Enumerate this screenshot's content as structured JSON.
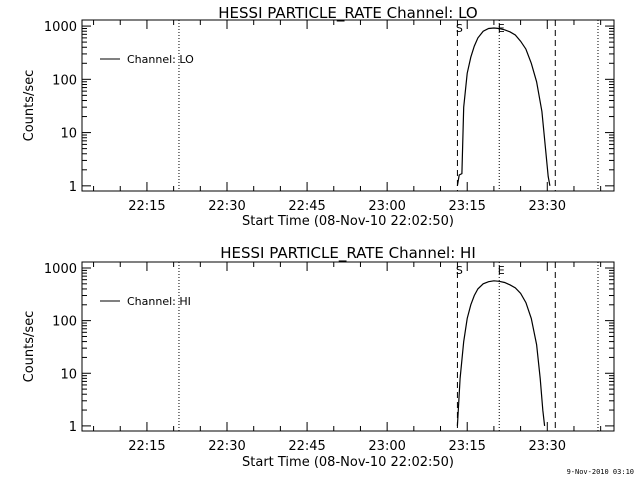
{
  "footer": {
    "stamp": "9-Nov-2010 03:10"
  },
  "chart_data": [
    {
      "type": "line",
      "title": "HESSI PARTICLE_RATE Channel: LO",
      "xlabel": "Start Time (08-Nov-10 22:02:50)",
      "ylabel": "Counts/sec",
      "xlim": [
        "22:02:50",
        "23:42:30"
      ],
      "yscale": "log",
      "ylim": [
        0.8,
        1300
      ],
      "x_ticks": [
        "22:15",
        "22:30",
        "22:45",
        "23:00",
        "23:15",
        "23:30"
      ],
      "y_ticks": [
        "1",
        "10",
        "100",
        "1000"
      ],
      "legend": {
        "position": "top-left",
        "entries": [
          "Channel: LO"
        ]
      },
      "series": [
        {
          "name": "Channel: LO",
          "x": [
            "23:13:10",
            "23:13:30",
            "23:14:00",
            "23:14:20",
            "23:15:00",
            "23:15:40",
            "23:16:20",
            "23:17:00",
            "23:18:00",
            "23:19:00",
            "23:20:00",
            "23:21:00",
            "23:22:00",
            "23:23:00",
            "23:24:00",
            "23:25:00",
            "23:26:00",
            "23:27:00",
            "23:28:00",
            "23:29:00",
            "23:29:40",
            "23:30:10",
            "23:30:30"
          ],
          "y": [
            1.0,
            1.6,
            1.7,
            30,
            130,
            260,
            420,
            600,
            800,
            900,
            920,
            900,
            850,
            780,
            680,
            520,
            370,
            200,
            90,
            25,
            5,
            1.5,
            1.0
          ]
        }
      ],
      "markers": [
        {
          "time": "22:21:00",
          "style": "dotted"
        },
        {
          "time": "23:13:10",
          "style": "dashed",
          "label": "S"
        },
        {
          "time": "23:21:00",
          "style": "dotted",
          "label": "E"
        },
        {
          "time": "23:31:30",
          "style": "dashed"
        },
        {
          "time": "23:39:30",
          "style": "dotted"
        }
      ]
    },
    {
      "type": "line",
      "title": "HESSI PARTICLE_RATE Channel: HI",
      "xlabel": "Start Time (08-Nov-10 22:02:50)",
      "ylabel": "Counts/sec",
      "xlim": [
        "22:02:50",
        "23:42:30"
      ],
      "yscale": "log",
      "ylim": [
        0.8,
        1300
      ],
      "x_ticks": [
        "22:15",
        "22:30",
        "22:45",
        "23:00",
        "23:15",
        "23:30"
      ],
      "y_ticks": [
        "1",
        "10",
        "100",
        "1000"
      ],
      "legend": {
        "position": "top-left",
        "entries": [
          "Channel: HI"
        ]
      },
      "series": [
        {
          "name": "Channel: HI",
          "x": [
            "23:13:10",
            "23:13:40",
            "23:14:20",
            "23:15:00",
            "23:15:40",
            "23:16:20",
            "23:17:00",
            "23:18:00",
            "23:19:00",
            "23:20:00",
            "23:21:00",
            "23:22:00",
            "23:23:00",
            "23:24:00",
            "23:25:00",
            "23:26:00",
            "23:27:00",
            "23:28:00",
            "23:28:40",
            "23:29:10",
            "23:29:30"
          ],
          "y": [
            1.0,
            8,
            40,
            110,
            200,
            300,
            400,
            500,
            550,
            570,
            560,
            530,
            480,
            420,
            330,
            220,
            110,
            35,
            8,
            2,
            1.0
          ]
        }
      ],
      "markers": [
        {
          "time": "22:21:00",
          "style": "dotted"
        },
        {
          "time": "23:13:10",
          "style": "dashed",
          "label": "S"
        },
        {
          "time": "23:21:00",
          "style": "dotted",
          "label": "E"
        },
        {
          "time": "23:31:30",
          "style": "dashed"
        },
        {
          "time": "23:39:30",
          "style": "dotted"
        }
      ]
    }
  ]
}
